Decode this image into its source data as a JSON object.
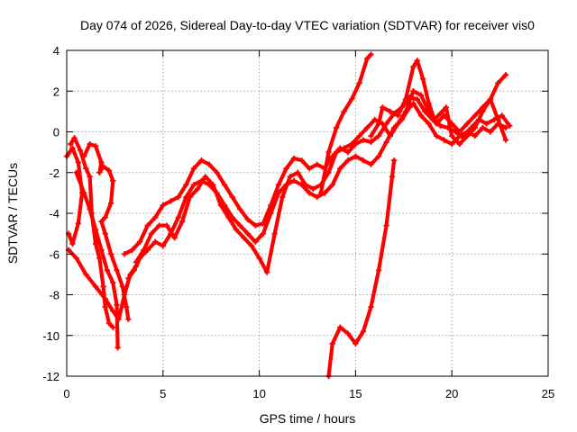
{
  "chart_data": {
    "type": "scatter",
    "title": "Day 074 of 2026, Sidereal Day-to-day VTEC variation (SDTVAR) for receiver vis0",
    "xlabel": "GPS time / hours",
    "ylabel": "SDTVAR / TECUs",
    "xlim": [
      0,
      25
    ],
    "ylim": [
      -12,
      4
    ],
    "xticks": [
      0,
      5,
      10,
      15,
      20,
      25
    ],
    "yticks": [
      -12,
      -10,
      -8,
      -6,
      -4,
      -2,
      0,
      2,
      4
    ],
    "grid": true,
    "marker": "+",
    "colors": {
      "series": "#ff0000",
      "axes": "#000000",
      "grid": "#a0a0a0"
    },
    "series": [
      {
        "values": [
          [
            0,
            -1.2
          ],
          [
            0.3,
            -0.8
          ],
          [
            0.6,
            -1.5
          ],
          [
            0.8,
            -3
          ],
          [
            0.6,
            -4.5
          ],
          [
            0.3,
            -5.5
          ],
          [
            0.1,
            -5
          ]
        ]
      },
      {
        "values": [
          [
            0.1,
            -5.8
          ],
          [
            0.5,
            -6.2
          ],
          [
            1.0,
            -7.0
          ],
          [
            1.5,
            -7.6
          ],
          [
            2.0,
            -8.2
          ],
          [
            2.4,
            -8.8
          ],
          [
            2.7,
            -9.2
          ],
          [
            3.0,
            -8.0
          ],
          [
            3.3,
            -7.0
          ],
          [
            3.6,
            -6.6
          ],
          [
            3.9,
            -6.0
          ]
        ]
      },
      {
        "values": [
          [
            0.2,
            -0.6
          ],
          [
            0.4,
            -0.3
          ],
          [
            0.7,
            -0.9
          ],
          [
            1.0,
            -1.8
          ],
          [
            1.2,
            -2.2
          ],
          [
            1.3,
            -4.0
          ],
          [
            1.5,
            -5.5
          ],
          [
            1.7,
            -6.2
          ],
          [
            1.9,
            -7.6
          ],
          [
            2.0,
            -8.6
          ],
          [
            2.2,
            -9.4
          ],
          [
            2.4,
            -9.6
          ]
        ]
      },
      {
        "values": [
          [
            0.5,
            -2.0
          ],
          [
            0.9,
            -3.0
          ],
          [
            1.2,
            -3.8
          ],
          [
            1.5,
            -4.8
          ],
          [
            1.8,
            -5.8
          ],
          [
            2.1,
            -6.8
          ],
          [
            2.4,
            -7.4
          ],
          [
            2.6,
            -8.5
          ],
          [
            2.65,
            -10.6
          ]
        ]
      },
      {
        "values": [
          [
            0.9,
            -1.2
          ],
          [
            1.2,
            -0.6
          ],
          [
            1.5,
            -0.7
          ],
          [
            1.8,
            -1.5
          ],
          [
            1.7,
            -2.0
          ],
          [
            1.9,
            -1.7
          ],
          [
            2.2,
            -1.9
          ],
          [
            2.4,
            -2.4
          ],
          [
            2.3,
            -3.5
          ],
          [
            2.0,
            -4.2
          ],
          [
            1.8,
            -4.4
          ],
          [
            2.0,
            -5.0
          ],
          [
            2.3,
            -6.0
          ],
          [
            2.6,
            -6.8
          ],
          [
            2.9,
            -7.6
          ],
          [
            3.1,
            -8.6
          ],
          [
            3.2,
            -9.2
          ]
        ]
      },
      {
        "values": [
          [
            3.0,
            -6.0
          ],
          [
            3.4,
            -5.8
          ],
          [
            3.8,
            -5.4
          ],
          [
            4.2,
            -4.6
          ],
          [
            4.6,
            -4.2
          ],
          [
            5.0,
            -3.6
          ],
          [
            5.4,
            -3.4
          ],
          [
            5.8,
            -3.2
          ],
          [
            6.2,
            -2.6
          ],
          [
            6.6,
            -1.8
          ],
          [
            7.0,
            -1.4
          ],
          [
            7.4,
            -1.6
          ],
          [
            7.8,
            -2.0
          ],
          [
            8.2,
            -2.6
          ],
          [
            8.6,
            -3.2
          ],
          [
            9.0,
            -3.8
          ],
          [
            9.4,
            -4.3
          ],
          [
            9.8,
            -4.6
          ],
          [
            10.2,
            -4.5
          ],
          [
            10.6,
            -3.6
          ],
          [
            11.0,
            -2.6
          ],
          [
            11.4,
            -1.8
          ],
          [
            11.8,
            -1.3
          ],
          [
            12.2,
            -1.4
          ],
          [
            12.6,
            -1.8
          ],
          [
            13.0,
            -1.6
          ],
          [
            13.4,
            -1.8
          ],
          [
            13.8,
            -1.2
          ],
          [
            14.2,
            -0.8
          ],
          [
            14.6,
            -1.0
          ],
          [
            15.0,
            -0.6
          ],
          [
            15.4,
            -0.4
          ],
          [
            15.8,
            -0.5
          ],
          [
            16.2,
            -0.2
          ],
          [
            16.6,
            0.4
          ],
          [
            17.0,
            0.9
          ],
          [
            17.4,
            1.2
          ],
          [
            17.8,
            1.7
          ],
          [
            18.2,
            1.6
          ],
          [
            18.6,
            1.0
          ],
          [
            19.0,
            0.6
          ],
          [
            19.4,
            0.3
          ],
          [
            19.8,
            0.2
          ],
          [
            20.2,
            0.0
          ],
          [
            20.6,
            -0.3
          ],
          [
            21.0,
            0.2
          ],
          [
            21.4,
            0.6
          ],
          [
            21.8,
            0.4
          ],
          [
            22.2,
            0.6
          ],
          [
            22.6,
            0.8
          ],
          [
            23.0,
            0.3
          ]
        ]
      },
      {
        "values": [
          [
            3.2,
            -7.2
          ],
          [
            3.5,
            -6.8
          ],
          [
            3.8,
            -6.2
          ],
          [
            4.2,
            -5.8
          ],
          [
            4.6,
            -5.4
          ],
          [
            5.0,
            -5.6
          ],
          [
            5.4,
            -5.0
          ],
          [
            5.8,
            -4.2
          ],
          [
            6.2,
            -3.2
          ],
          [
            6.6,
            -2.6
          ],
          [
            7.0,
            -2.4
          ],
          [
            7.4,
            -2.6
          ],
          [
            7.8,
            -3.0
          ],
          [
            8.2,
            -3.6
          ],
          [
            8.6,
            -4.2
          ],
          [
            9.0,
            -4.6
          ],
          [
            9.4,
            -5.0
          ],
          [
            9.8,
            -5.4
          ],
          [
            10.2,
            -5.0
          ],
          [
            10.6,
            -4.0
          ],
          [
            11.0,
            -3.0
          ],
          [
            11.4,
            -2.6
          ],
          [
            11.8,
            -2.4
          ],
          [
            12.2,
            -2.6
          ],
          [
            12.6,
            -3.0
          ],
          [
            13.0,
            -3.2
          ],
          [
            13.4,
            -3.0
          ],
          [
            13.8,
            -2.6
          ],
          [
            14.2,
            -1.8
          ],
          [
            14.6,
            -1.4
          ],
          [
            15.0,
            -1.2
          ],
          [
            15.4,
            -1.4
          ],
          [
            15.8,
            -1.6
          ],
          [
            16.2,
            -1.2
          ],
          [
            16.6,
            -0.5
          ],
          [
            17.0,
            0.2
          ],
          [
            17.4,
            0.6
          ],
          [
            17.8,
            1.2
          ],
          [
            18.0,
            1.4
          ],
          [
            18.4,
            0.8
          ],
          [
            18.8,
            0.4
          ],
          [
            19.2,
            -0.2
          ],
          [
            19.6,
            -0.4
          ],
          [
            20.0,
            -0.6
          ],
          [
            20.4,
            -0.2
          ],
          [
            20.8,
            0.0
          ],
          [
            21.2,
            -0.2
          ],
          [
            21.6,
            0.2
          ],
          [
            22.0,
            0.0
          ],
          [
            22.4,
            0.4
          ],
          [
            22.8,
            0.2
          ]
        ]
      },
      {
        "values": [
          [
            3.6,
            -6.4
          ],
          [
            4.0,
            -5.8
          ],
          [
            4.4,
            -5.0
          ],
          [
            4.8,
            -4.6
          ],
          [
            5.2,
            -4.6
          ],
          [
            5.6,
            -5.2
          ],
          [
            6.0,
            -4.4
          ],
          [
            6.4,
            -3.2
          ],
          [
            6.8,
            -2.8
          ],
          [
            7.2,
            -2.2
          ],
          [
            7.6,
            -2.6
          ],
          [
            8.0,
            -3.6
          ],
          [
            8.4,
            -4.2
          ],
          [
            8.8,
            -4.8
          ],
          [
            9.2,
            -5.2
          ],
          [
            9.6,
            -5.6
          ],
          [
            10.0,
            -6.2
          ],
          [
            10.4,
            -6.9
          ],
          [
            10.8,
            -5.0
          ],
          [
            11.2,
            -3.2
          ],
          [
            11.6,
            -2.2
          ],
          [
            12.0,
            -2.0
          ],
          [
            12.4,
            -2.6
          ],
          [
            12.8,
            -2.8
          ],
          [
            13.2,
            -2.6
          ],
          [
            13.6,
            -2.0
          ],
          [
            14.0,
            -1.0
          ],
          [
            14.4,
            -0.8
          ],
          [
            14.8,
            -0.6
          ],
          [
            15.2,
            -0.2
          ],
          [
            15.6,
            0.2
          ],
          [
            16.0,
            0.6
          ],
          [
            16.4,
            0.4
          ],
          [
            16.8,
            -0.2
          ],
          [
            17.2,
            0.4
          ],
          [
            17.6,
            1.0
          ],
          [
            18.0,
            2.0
          ],
          [
            18.4,
            1.8
          ],
          [
            18.8,
            1.0
          ],
          [
            19.2,
            0.4
          ],
          [
            19.6,
            0.8
          ],
          [
            20.0,
            0.4
          ],
          [
            20.4,
            0.0
          ],
          [
            20.8,
            0.4
          ],
          [
            21.2,
            0.8
          ],
          [
            21.6,
            1.2
          ],
          [
            22.0,
            1.6
          ],
          [
            22.4,
            2.4
          ],
          [
            22.8,
            2.8
          ]
        ]
      },
      {
        "values": [
          [
            13.2,
            -3.0
          ],
          [
            13.6,
            -1.0
          ],
          [
            14.0,
            0.2
          ],
          [
            14.4,
            1.0
          ],
          [
            14.8,
            1.6
          ],
          [
            15.2,
            2.4
          ],
          [
            15.6,
            3.6
          ],
          [
            15.8,
            3.8
          ]
        ]
      },
      {
        "values": [
          [
            13.6,
            -12.0
          ],
          [
            13.8,
            -10.4
          ],
          [
            14.2,
            -9.6
          ],
          [
            14.6,
            -9.9
          ],
          [
            15.0,
            -10.4
          ],
          [
            15.4,
            -9.8
          ],
          [
            15.8,
            -8.6
          ],
          [
            16.2,
            -6.8
          ],
          [
            16.6,
            -4.6
          ],
          [
            16.9,
            -2.2
          ],
          [
            17.0,
            -1.4
          ]
        ]
      },
      {
        "values": [
          [
            15.8,
            -0.2
          ],
          [
            16.2,
            0.4
          ],
          [
            16.4,
            1.2
          ],
          [
            16.8,
            1.0
          ],
          [
            17.2,
            0.8
          ],
          [
            17.6,
            1.6
          ],
          [
            18.0,
            3.2
          ],
          [
            18.2,
            3.5
          ],
          [
            18.5,
            2.6
          ],
          [
            18.8,
            1.4
          ],
          [
            19.1,
            0.6
          ],
          [
            19.4,
            0.9
          ],
          [
            19.7,
            1.2
          ],
          [
            20.0,
            -0.2
          ],
          [
            20.4,
            -0.6
          ],
          [
            20.8,
            -0.2
          ],
          [
            21.2,
            0.2
          ],
          [
            21.6,
            1.0
          ],
          [
            22.0,
            1.6
          ],
          [
            22.4,
            0.6
          ],
          [
            22.8,
            -0.4
          ]
        ]
      }
    ]
  }
}
